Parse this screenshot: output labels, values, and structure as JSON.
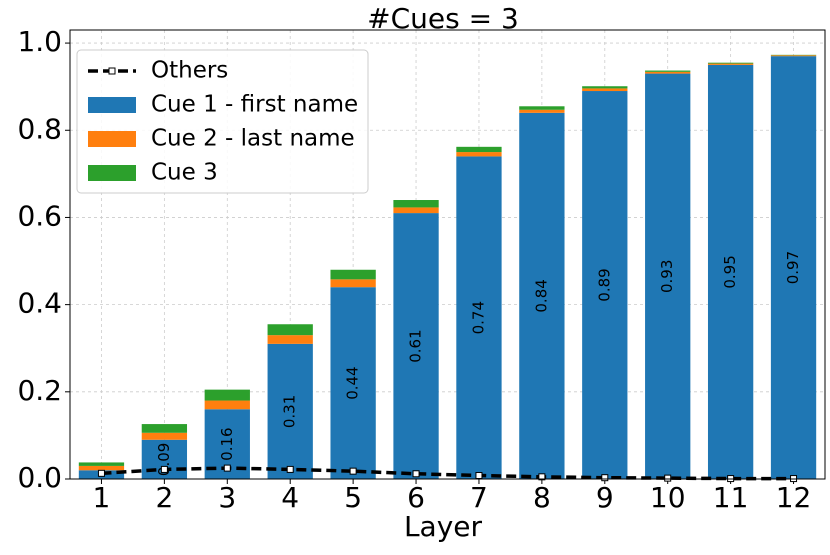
{
  "chart_data": {
    "type": "stacked-bar-line",
    "title": "#Cues = 3",
    "xlabel": "Layer",
    "categories": [
      "1",
      "2",
      "3",
      "4",
      "5",
      "6",
      "7",
      "8",
      "9",
      "10",
      "11",
      "12"
    ],
    "series": [
      {
        "name": "Cue 1 - first name",
        "color": "#1f77b4",
        "values": [
          0.02,
          0.09,
          0.16,
          0.31,
          0.44,
          0.61,
          0.74,
          0.84,
          0.89,
          0.93,
          0.95,
          0.97
        ],
        "value_labels": [
          null,
          "0.09",
          "0.16",
          "0.31",
          "0.44",
          "0.61",
          "0.74",
          "0.84",
          "0.89",
          "0.93",
          "0.95",
          "0.97"
        ]
      },
      {
        "name": "Cue 2 - last name",
        "color": "#ff7f0e",
        "values": [
          0.01,
          0.016,
          0.02,
          0.02,
          0.018,
          0.013,
          0.01,
          0.007,
          0.006,
          0.004,
          0.003,
          0.002
        ]
      },
      {
        "name": "Cue 3",
        "color": "#2ca02c",
        "values": [
          0.008,
          0.02,
          0.025,
          0.025,
          0.022,
          0.017,
          0.012,
          0.008,
          0.005,
          0.003,
          0.002,
          0.001
        ]
      }
    ],
    "line": {
      "name": "Others",
      "color": "#000000",
      "values": [
        0.013,
        0.022,
        0.025,
        0.022,
        0.018,
        0.012,
        0.008,
        0.005,
        0.003,
        0.002,
        0.001,
        0.001
      ]
    },
    "ylim": [
      0,
      1.03
    ],
    "yticks": [
      {
        "value": 0,
        "label": "0.0"
      },
      0.2,
      0.4,
      0.6,
      0.8,
      {
        "value": 1,
        "label": "1.0"
      }
    ],
    "grid": true,
    "legend": "upper left"
  }
}
